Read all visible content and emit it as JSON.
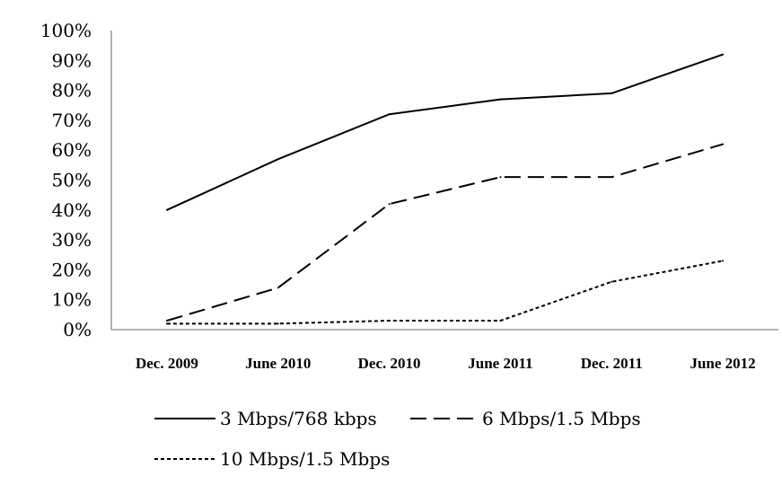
{
  "chart_data": {
    "type": "line",
    "title": "",
    "xlabel": "",
    "ylabel": "",
    "categories": [
      "Dec. 2009",
      "June 2010",
      "Dec. 2010",
      "June 2011",
      "Dec. 2011",
      "June 2012"
    ],
    "ylim": [
      0,
      100
    ],
    "yticks": [
      "0%",
      "10%",
      "20%",
      "30%",
      "40%",
      "50%",
      "60%",
      "70%",
      "80%",
      "90%",
      "100%"
    ],
    "grid": false,
    "legend_position": "bottom",
    "series": [
      {
        "name": "3 Mbps/768 kbps",
        "values": [
          40,
          57,
          72,
          77,
          79,
          92
        ],
        "color": "#000000",
        "dash": "solid"
      },
      {
        "name": "6 Mbps/1.5 Mbps",
        "values": [
          3,
          14,
          42,
          51,
          51,
          62
        ],
        "color": "#000000",
        "dash": "long-dash"
      },
      {
        "name": "10 Mbps/1.5 Mbps",
        "values": [
          2,
          2,
          3,
          3,
          16,
          23
        ],
        "color": "#000000",
        "dash": "short-dash"
      }
    ]
  }
}
